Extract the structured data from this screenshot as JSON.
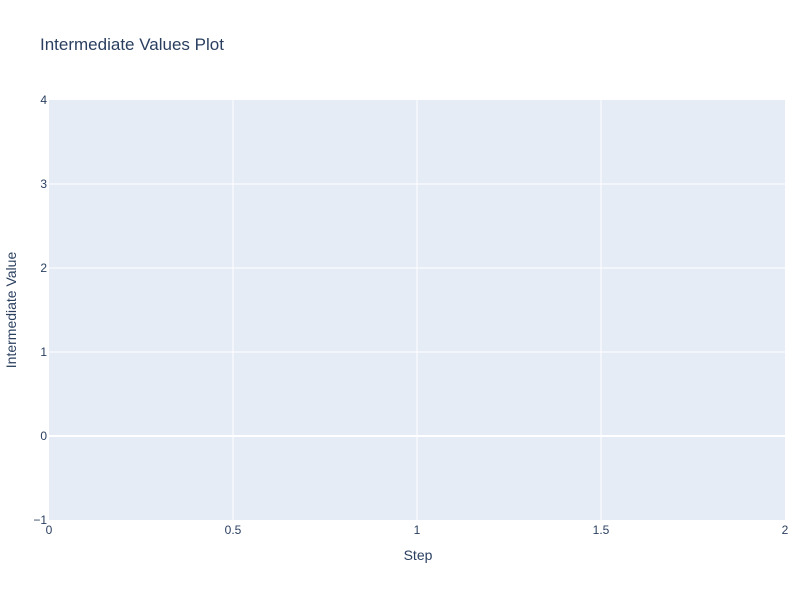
{
  "chart_data": {
    "type": "line",
    "title": "Intermediate Values Plot",
    "xlabel": "Step",
    "ylabel": "Intermediate Value",
    "xlim": [
      0,
      2
    ],
    "ylim": [
      -1,
      4
    ],
    "x_ticks": [
      0,
      0.5,
      1,
      1.5,
      2
    ],
    "x_tick_labels": [
      "0",
      "0.5",
      "1",
      "1.5",
      "2"
    ],
    "y_ticks": [
      -1,
      0,
      1,
      2,
      3,
      4
    ],
    "y_tick_labels": [
      "−1",
      "0",
      "1",
      "2",
      "3",
      "4"
    ],
    "grid": true,
    "series": [],
    "colors": {
      "plot_bg": "#e5ecf6",
      "grid": "#ffffff",
      "text": "#2a3f5f",
      "paper_bg": "#ffffff"
    }
  }
}
